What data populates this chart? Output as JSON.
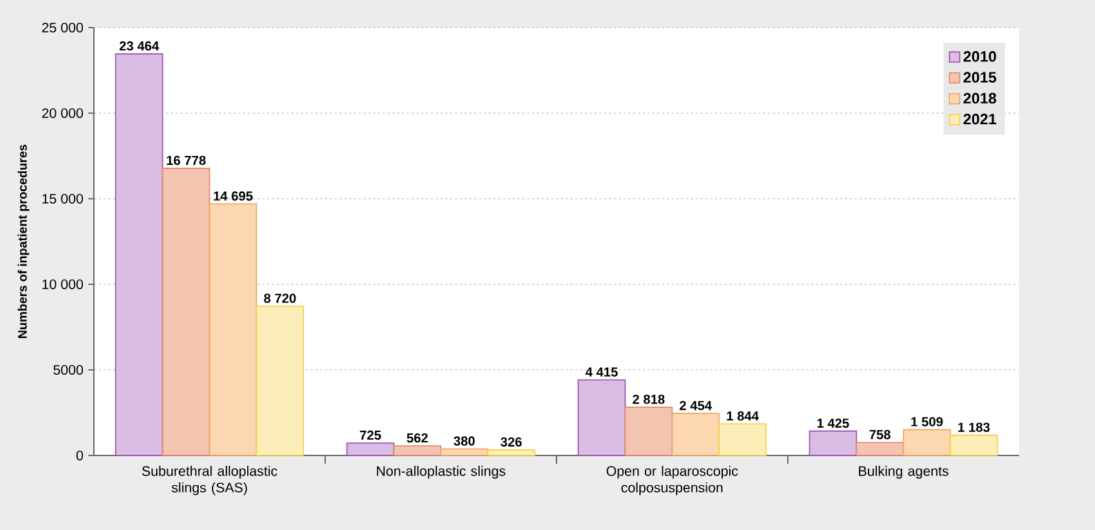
{
  "chart_data": {
    "type": "bar",
    "ylabel": "Numbers of inpatient procedures",
    "categories": [
      "Suburethral alloplastic slings (SAS)",
      "Non-alloplastic slings",
      "Open or laparoscopic colposuspension",
      "Bulking agents"
    ],
    "series": [
      {
        "name": "2010",
        "color": "#d9bde3",
        "values": [
          23464,
          725,
          4415,
          1425
        ],
        "value_labels": [
          "23 464",
          "725",
          "4 415",
          "1 425"
        ]
      },
      {
        "name": "2015",
        "color": "#f3c4b0",
        "values": [
          16778,
          562,
          2818,
          758
        ],
        "value_labels": [
          "16 778",
          "562",
          "2 818",
          "758"
        ]
      },
      {
        "name": "2018",
        "color": "#fcd7b0",
        "values": [
          14695,
          380,
          2454,
          1509
        ],
        "value_labels": [
          "14 695",
          "380",
          "2 454",
          "1 509"
        ]
      },
      {
        "name": "2021",
        "color": "#fdedb8",
        "values": [
          8720,
          326,
          1844,
          1183
        ],
        "value_labels": [
          "8 720",
          "326",
          "1 844",
          "1 183"
        ]
      }
    ],
    "ylim": [
      0,
      25000
    ],
    "yticks": [
      0,
      {
        "value": 5000,
        "label": "5000"
      },
      {
        "value": 10000,
        "label": "10 000"
      },
      {
        "value": 15000,
        "label": "15 000"
      },
      {
        "value": 20000,
        "label": "20 000"
      },
      {
        "value": 25000,
        "label": "25 000"
      }
    ],
    "grid": "y",
    "legend": "top right"
  }
}
